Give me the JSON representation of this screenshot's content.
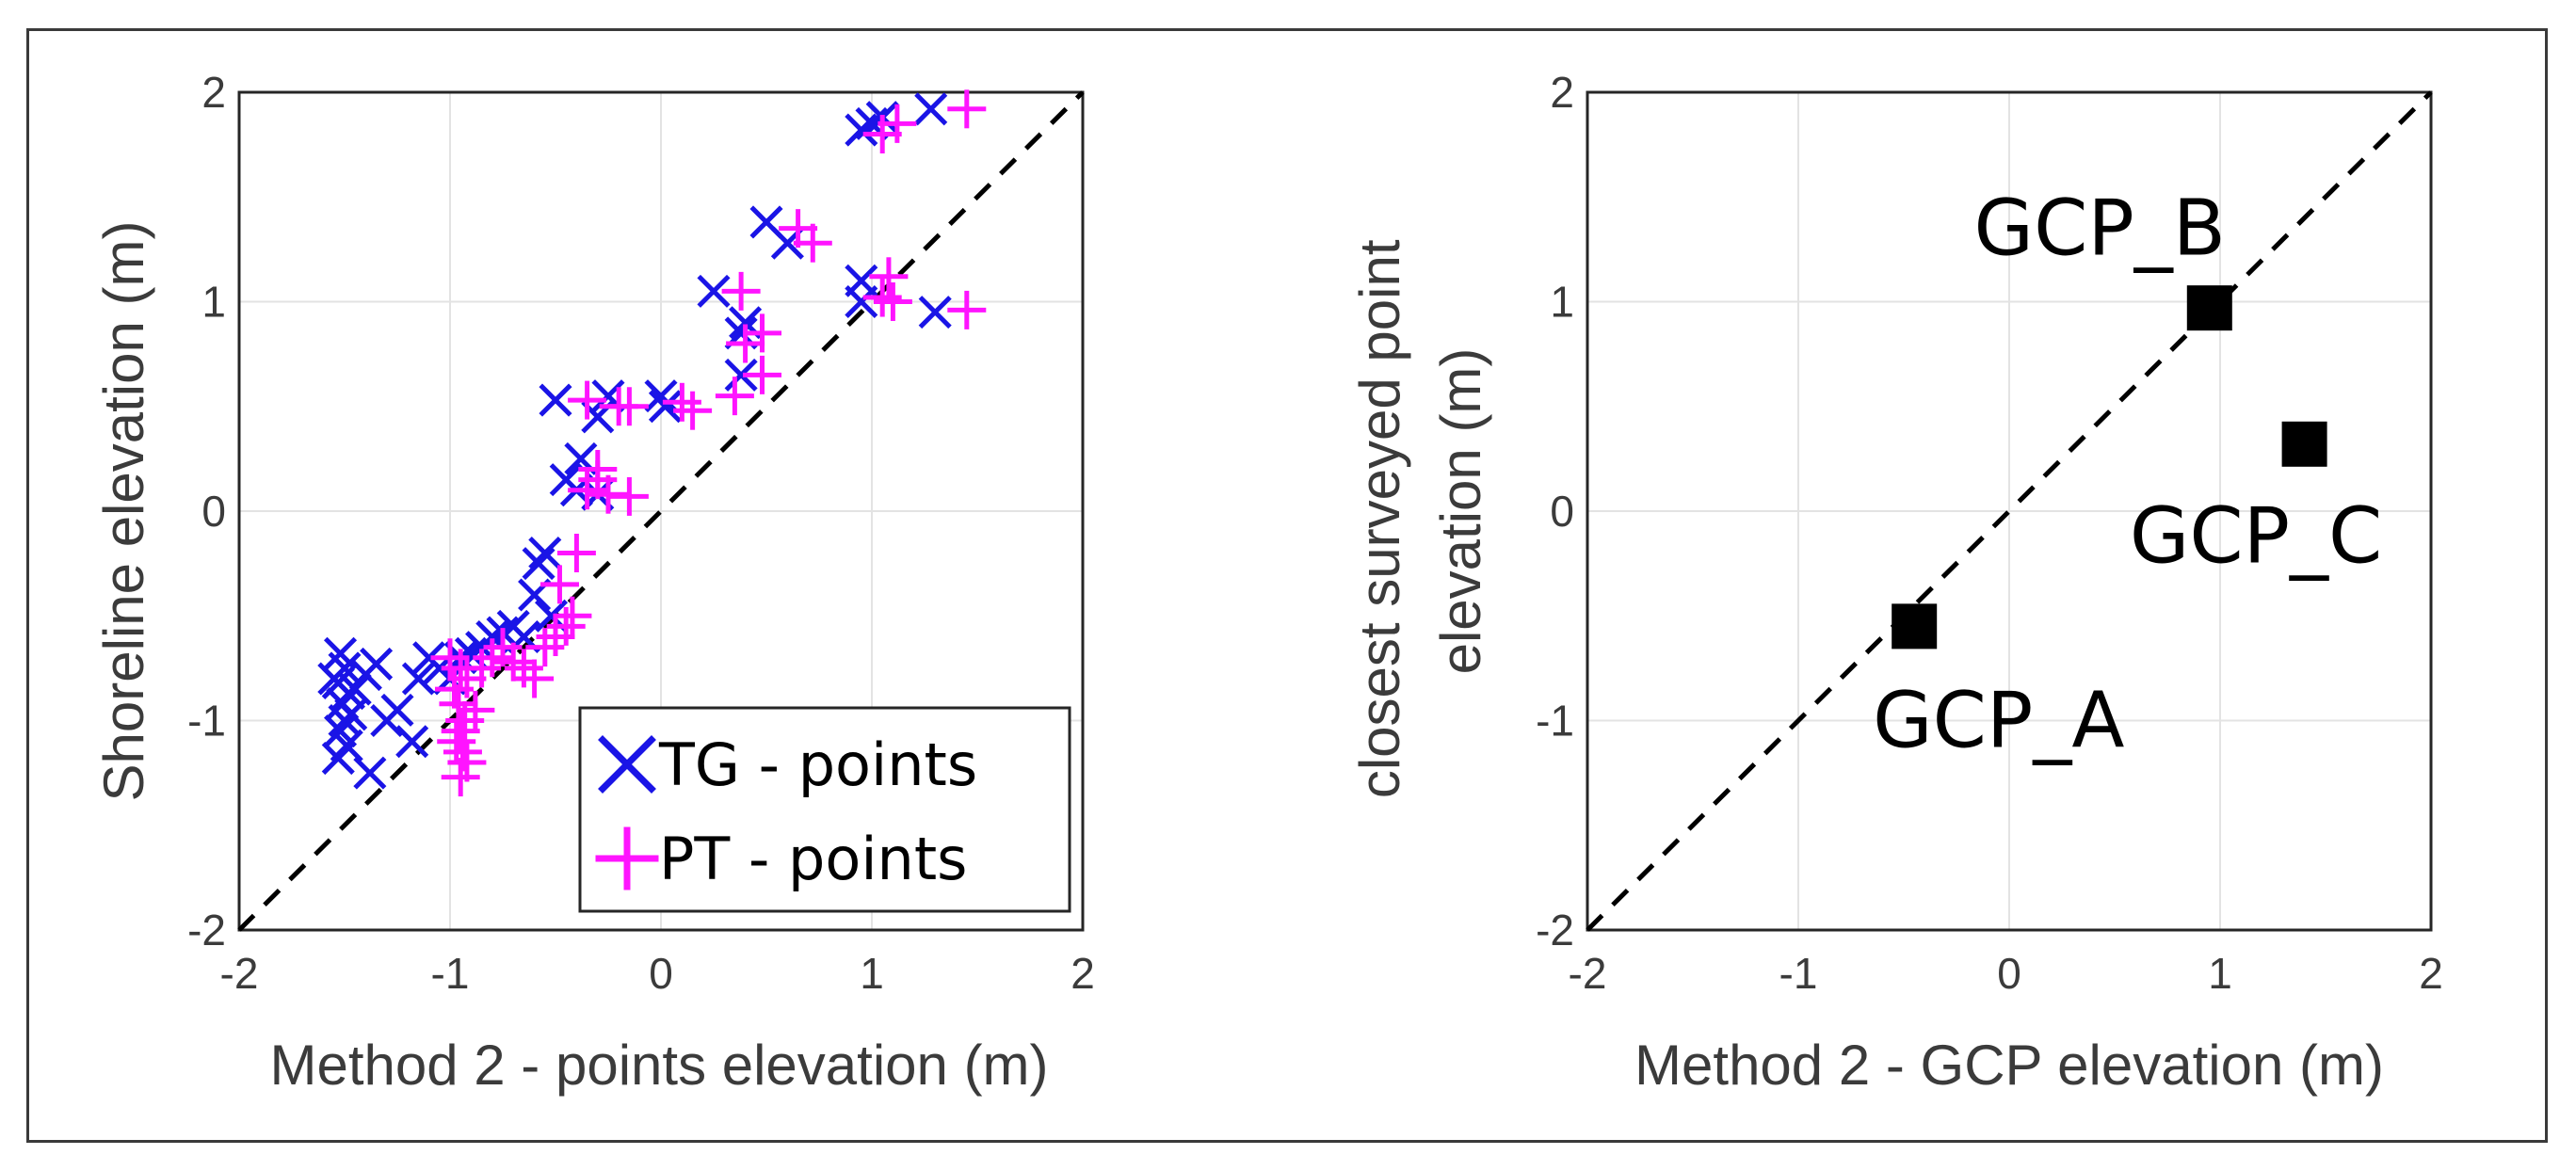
{
  "chart_data": [
    {
      "type": "scatter",
      "xlabel": "Method 2 - points elevation (m)",
      "ylabel": "Shoreline elevation (m)",
      "xlim": [
        -2,
        2
      ],
      "ylim": [
        -2,
        2
      ],
      "xticks": [
        "-2",
        "-1",
        "0",
        "1",
        "2"
      ],
      "yticks": [
        "-2",
        "-1",
        "0",
        "1",
        "2"
      ],
      "grid": true,
      "reference_line": {
        "type": "1:1",
        "style": "dashed",
        "color": "#000000"
      },
      "legend": {
        "placement": "bottom-right",
        "entries": [
          {
            "label": "TG - points",
            "marker": "x",
            "color": "#1a14e6"
          },
          {
            "label": "PT - points",
            "marker": "+",
            "color": "#ff14ff"
          }
        ]
      },
      "series": [
        {
          "name": "TG - points",
          "marker": "x",
          "color": "#1a14e6",
          "points": [
            [
              -1.52,
              -0.68
            ],
            [
              -1.5,
              -0.75
            ],
            [
              -1.53,
              -0.82
            ],
            [
              -1.48,
              -0.87
            ],
            [
              -1.51,
              -0.92
            ],
            [
              -1.55,
              -0.8
            ],
            [
              -1.5,
              -1.0
            ],
            [
              -1.52,
              -1.05
            ],
            [
              -1.49,
              -1.12
            ],
            [
              -1.53,
              -1.18
            ],
            [
              -1.47,
              -0.97
            ],
            [
              -1.45,
              -0.85
            ],
            [
              -1.4,
              -0.78
            ],
            [
              -1.35,
              -0.73
            ],
            [
              -1.3,
              -1.0
            ],
            [
              -1.38,
              -1.25
            ],
            [
              -1.25,
              -0.95
            ],
            [
              -1.15,
              -0.8
            ],
            [
              -1.18,
              -1.1
            ],
            [
              -1.1,
              -0.7
            ],
            [
              -1.05,
              -0.75
            ],
            [
              -1.0,
              -0.8
            ],
            [
              -0.95,
              -0.7
            ],
            [
              -0.9,
              -0.68
            ],
            [
              -0.85,
              -0.65
            ],
            [
              -0.8,
              -0.6
            ],
            [
              -0.75,
              -0.58
            ],
            [
              -0.7,
              -0.55
            ],
            [
              -0.65,
              -0.6
            ],
            [
              -0.6,
              -0.4
            ],
            [
              -0.58,
              -0.25
            ],
            [
              -0.55,
              -0.2
            ],
            [
              -0.52,
              -0.5
            ],
            [
              -0.45,
              0.15
            ],
            [
              -0.4,
              0.1
            ],
            [
              -0.38,
              0.25
            ],
            [
              -0.3,
              0.08
            ],
            [
              -0.5,
              0.53
            ],
            [
              -0.3,
              0.45
            ],
            [
              -0.25,
              0.55
            ],
            [
              0.0,
              0.55
            ],
            [
              0.02,
              0.5
            ],
            [
              0.25,
              1.05
            ],
            [
              0.38,
              0.65
            ],
            [
              0.38,
              0.85
            ],
            [
              0.4,
              0.9
            ],
            [
              0.5,
              1.38
            ],
            [
              0.6,
              1.28
            ],
            [
              0.95,
              1.1
            ],
            [
              0.95,
              1.0
            ],
            [
              1.0,
              1.85
            ],
            [
              1.05,
              1.88
            ],
            [
              0.95,
              1.82
            ],
            [
              1.28,
              1.92
            ],
            [
              1.3,
              0.95
            ]
          ]
        },
        {
          "name": "PT - points",
          "marker": "+",
          "color": "#ff14ff",
          "points": [
            [
              -1.0,
              -0.7
            ],
            [
              -0.95,
              -0.75
            ],
            [
              -0.92,
              -0.8
            ],
            [
              -0.98,
              -0.85
            ],
            [
              -0.96,
              -0.92
            ],
            [
              -0.93,
              -1.0
            ],
            [
              -0.95,
              -1.05
            ],
            [
              -0.97,
              -1.1
            ],
            [
              -0.94,
              -1.15
            ],
            [
              -0.92,
              -1.2
            ],
            [
              -0.95,
              -1.27
            ],
            [
              -0.88,
              -0.95
            ],
            [
              -0.85,
              -0.75
            ],
            [
              -0.8,
              -0.7
            ],
            [
              -0.75,
              -0.65
            ],
            [
              -0.7,
              -0.72
            ],
            [
              -0.65,
              -0.75
            ],
            [
              -0.6,
              -0.8
            ],
            [
              -0.55,
              -0.65
            ],
            [
              -0.5,
              -0.6
            ],
            [
              -0.45,
              -0.55
            ],
            [
              -0.42,
              -0.5
            ],
            [
              -0.48,
              -0.35
            ],
            [
              -0.4,
              -0.2
            ],
            [
              -0.35,
              0.1
            ],
            [
              -0.3,
              0.15
            ],
            [
              -0.25,
              0.08
            ],
            [
              -0.15,
              0.07
            ],
            [
              -0.3,
              0.2
            ],
            [
              -0.35,
              0.53
            ],
            [
              -0.2,
              0.5
            ],
            [
              -0.15,
              0.5
            ],
            [
              0.1,
              0.52
            ],
            [
              0.15,
              0.48
            ],
            [
              0.35,
              0.55
            ],
            [
              0.4,
              0.8
            ],
            [
              0.48,
              0.85
            ],
            [
              0.48,
              0.65
            ],
            [
              0.38,
              1.05
            ],
            [
              0.65,
              1.35
            ],
            [
              0.72,
              1.28
            ],
            [
              1.05,
              1.8
            ],
            [
              1.12,
              1.85
            ],
            [
              1.45,
              1.92
            ],
            [
              1.08,
              1.12
            ],
            [
              1.05,
              1.02
            ],
            [
              1.1,
              1.0
            ],
            [
              1.45,
              0.96
            ]
          ]
        }
      ]
    },
    {
      "type": "scatter",
      "xlabel": "Method 2 - GCP elevation (m)",
      "ylabel": [
        "closest surveyed point",
        "elevation (m)"
      ],
      "xlim": [
        -2,
        2
      ],
      "ylim": [
        -2,
        2
      ],
      "xticks": [
        "-2",
        "-1",
        "0",
        "1",
        "2"
      ],
      "yticks": [
        "-2",
        "-1",
        "0",
        "1",
        "2"
      ],
      "grid": true,
      "reference_line": {
        "type": "1:1",
        "style": "dashed",
        "color": "#000000"
      },
      "series": [
        {
          "name": "GCP",
          "marker": "square",
          "color": "#000000",
          "points": [
            [
              -0.45,
              -0.55
            ],
            [
              0.95,
              0.97
            ],
            [
              1.4,
              0.32
            ]
          ]
        }
      ],
      "annotations": [
        {
          "text": "GCP_A",
          "x": -0.05,
          "y": -1.0
        },
        {
          "text": "GCP_B",
          "x": 0.43,
          "y": 1.35
        },
        {
          "text": "GCP_C",
          "x": 1.17,
          "y": -0.12
        }
      ]
    }
  ]
}
